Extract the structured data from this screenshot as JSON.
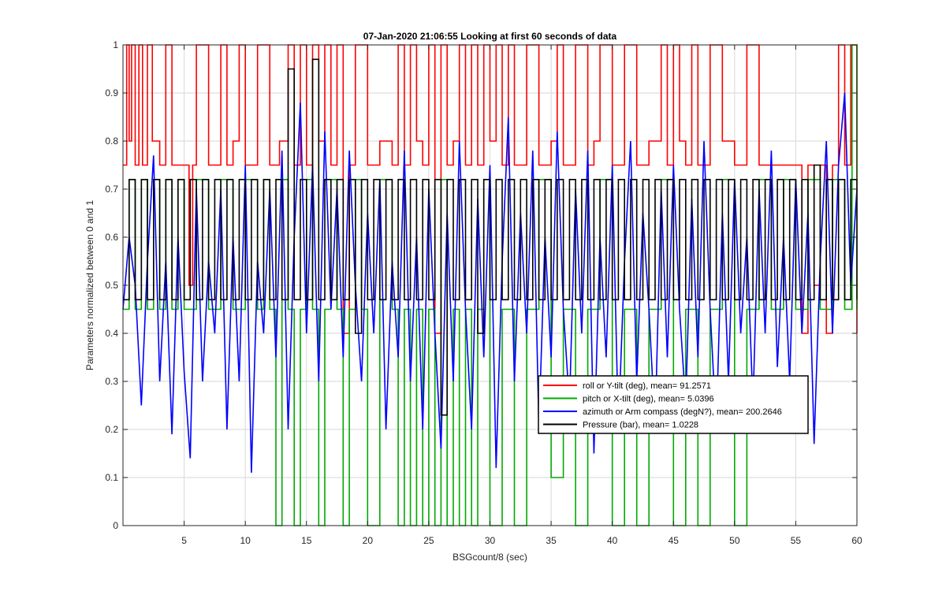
{
  "chart_data": {
    "type": "line",
    "title": "07-Jan-2020 21:06:55 Looking at first 60 seconds of data",
    "xlabel": "BSGcount/8 (sec)",
    "ylabel": "Parameters normalized between 0 and 1",
    "xlim": [
      0,
      60
    ],
    "ylim": [
      0,
      1
    ],
    "xticks": [
      5,
      10,
      15,
      20,
      25,
      30,
      35,
      40,
      45,
      50,
      55,
      60
    ],
    "yticks": [
      0,
      0.1,
      0.2,
      0.3,
      0.4,
      0.5,
      0.6,
      0.7,
      0.8,
      0.9,
      1
    ],
    "grid": true,
    "legend_position": "lower-right",
    "series": [
      {
        "name": "roll or Y-tilt (deg), mean= 91.2571",
        "color": "#ff0000",
        "kind": "step",
        "levels": [
          0.4,
          0.5,
          0.75,
          0.8,
          1.0
        ],
        "base_level": 0.75,
        "x": [
          0,
          0.3,
          0.5,
          0.7,
          1.0,
          1.3,
          1.6,
          2.0,
          2.4,
          3.0,
          3.5,
          4.0,
          5.0,
          5.4,
          5.7,
          6.0,
          7.0,
          8.0,
          8.5,
          9.0,
          9.5,
          10.0,
          11.0,
          12.0,
          12.8,
          13.5,
          14.0,
          14.5,
          15.0,
          15.5,
          16.0,
          16.5,
          17.0,
          17.5,
          18.0,
          18.5,
          19.0,
          20.0,
          21.0,
          22.0,
          22.5,
          23.0,
          23.5,
          24.0,
          24.5,
          25.0,
          25.5,
          26.0,
          26.5,
          27.0,
          27.5,
          28.0,
          28.5,
          29.0,
          29.5,
          30.0,
          30.5,
          31.0,
          31.5,
          32.0,
          33.0,
          34.0,
          35.0,
          35.5,
          36.0,
          37.0,
          38.0,
          38.5,
          39.0,
          40.0,
          41.0,
          42.0,
          43.0,
          44.0,
          44.5,
          45.0,
          45.5,
          46.0,
          46.5,
          47.0,
          48.0,
          49.0,
          50.0,
          51.0,
          52.0,
          53.0,
          54.0,
          55.0,
          55.5,
          56.0,
          56.5,
          57.0,
          57.5,
          58.0,
          58.5,
          59.0,
          59.5,
          60.0
        ],
        "y": [
          0.75,
          1.0,
          0.8,
          1.0,
          0.75,
          1.0,
          0.75,
          1.0,
          0.8,
          0.75,
          1.0,
          0.75,
          0.75,
          0.5,
          0.75,
          1.0,
          0.75,
          1.0,
          0.75,
          0.8,
          1.0,
          0.75,
          1.0,
          0.75,
          0.8,
          1.0,
          0.75,
          1.0,
          0.75,
          1.0,
          0.8,
          1.0,
          0.75,
          1.0,
          0.4,
          0.75,
          1.0,
          0.75,
          0.8,
          0.75,
          1.0,
          0.75,
          1.0,
          0.8,
          0.75,
          1.0,
          0.4,
          1.0,
          0.75,
          0.8,
          1.0,
          0.75,
          1.0,
          0.75,
          1.0,
          0.8,
          1.0,
          0.75,
          1.0,
          0.75,
          1.0,
          0.75,
          0.8,
          1.0,
          0.75,
          1.0,
          0.75,
          0.8,
          1.0,
          0.75,
          1.0,
          0.75,
          0.8,
          1.0,
          0.75,
          1.0,
          0.8,
          0.75,
          1.0,
          0.75,
          1.0,
          0.8,
          0.75,
          1.0,
          0.75,
          0.75,
          0.75,
          0.75,
          0.4,
          0.75,
          0.5,
          0.75,
          0.4,
          0.75,
          1.0,
          0.75,
          1.0,
          0.4
        ]
      },
      {
        "name": "pitch or X-tilt (deg), mean= 5.0396",
        "color": "#00aa00",
        "kind": "step",
        "levels": [
          0.0,
          0.1,
          0.45,
          0.72
        ],
        "x": [
          0,
          0.5,
          1.0,
          1.5,
          2.0,
          2.5,
          3.0,
          3.5,
          4.0,
          4.5,
          5.0,
          6.0,
          7.0,
          8.0,
          9.0,
          10.0,
          11.0,
          11.5,
          12.0,
          12.5,
          13.0,
          13.5,
          14.0,
          14.5,
          15.0,
          15.5,
          16.0,
          16.5,
          17.0,
          17.5,
          18.0,
          18.5,
          19.0,
          19.5,
          20.0,
          21.0,
          22.0,
          22.5,
          23.0,
          23.5,
          24.0,
          24.5,
          25.0,
          25.5,
          26.0,
          26.5,
          27.0,
          27.5,
          28.0,
          28.5,
          29.0,
          29.5,
          30.0,
          31.0,
          32.0,
          33.0,
          34.0,
          35.0,
          36.0,
          37.0,
          38.0,
          39.0,
          40.0,
          41.0,
          42.0,
          43.0,
          44.0,
          45.0,
          46.0,
          47.0,
          48.0,
          49.0,
          50.0,
          51.0,
          52.0,
          53.0,
          54.0,
          55.0,
          56.0,
          57.0,
          58.0,
          59.0,
          59.6,
          60.0
        ],
        "y": [
          0.45,
          0.72,
          0.45,
          0.72,
          0.45,
          0.72,
          0.45,
          0.72,
          0.45,
          0.72,
          0.45,
          0.72,
          0.45,
          0.72,
          0.45,
          0.72,
          0.45,
          0.72,
          0.45,
          0.0,
          0.72,
          0.45,
          0.0,
          0.45,
          0.72,
          0.45,
          0.0,
          0.45,
          0.72,
          0.45,
          0.0,
          0.45,
          0.72,
          0.45,
          0.0,
          0.72,
          0.45,
          0.0,
          0.45,
          0.0,
          0.45,
          0.0,
          0.45,
          0.0,
          0.72,
          0.0,
          0.45,
          0.0,
          0.45,
          0.0,
          0.45,
          0.72,
          0.0,
          0.45,
          0.0,
          0.45,
          0.72,
          0.1,
          0.45,
          0.0,
          0.45,
          0.72,
          0.0,
          0.45,
          0.0,
          0.45,
          0.72,
          0.0,
          0.45,
          0.0,
          0.45,
          0.72,
          0.0,
          0.45,
          0.72,
          0.45,
          0.72,
          0.45,
          0.72,
          0.45,
          0.72,
          0.45,
          1.0,
          0.45
        ]
      },
      {
        "name": "azimuth or Arm compass (degN?), mean= 200.2646",
        "color": "#0000ff",
        "kind": "line",
        "x": [
          0,
          0.5,
          1.0,
          1.5,
          2.0,
          2.5,
          3.0,
          3.5,
          4.0,
          4.5,
          5.0,
          5.5,
          6.0,
          6.5,
          7.0,
          7.5,
          8.0,
          8.5,
          9.0,
          9.5,
          10.0,
          10.5,
          11.0,
          11.5,
          12.0,
          12.5,
          13.0,
          13.5,
          14.0,
          14.5,
          15.0,
          15.5,
          16.0,
          16.5,
          17.0,
          17.5,
          18.0,
          18.5,
          19.0,
          19.5,
          20.0,
          20.5,
          21.0,
          21.5,
          22.0,
          22.5,
          23.0,
          23.5,
          24.0,
          24.5,
          25.0,
          25.5,
          26.0,
          26.5,
          27.0,
          27.5,
          28.0,
          28.5,
          29.0,
          29.5,
          30.0,
          30.5,
          31.0,
          31.5,
          32.0,
          32.5,
          33.0,
          33.5,
          34.0,
          34.5,
          35.0,
          35.5,
          36.0,
          36.5,
          37.0,
          37.5,
          38.0,
          38.5,
          39.0,
          39.5,
          40.0,
          40.5,
          41.0,
          41.5,
          42.0,
          42.5,
          43.0,
          43.5,
          44.0,
          44.5,
          45.0,
          45.5,
          46.0,
          46.5,
          47.0,
          47.5,
          48.0,
          48.5,
          49.0,
          49.5,
          50.0,
          50.5,
          51.0,
          51.5,
          52.0,
          52.5,
          53.0,
          53.5,
          54.0,
          54.5,
          55.0,
          55.5,
          56.0,
          56.5,
          57.0,
          57.5,
          58.0,
          58.5,
          59.0,
          59.5,
          60.0
        ],
        "y": [
          0.45,
          0.6,
          0.5,
          0.25,
          0.55,
          0.77,
          0.3,
          0.55,
          0.19,
          0.6,
          0.32,
          0.14,
          0.7,
          0.3,
          0.55,
          0.4,
          0.7,
          0.2,
          0.6,
          0.3,
          0.75,
          0.11,
          0.55,
          0.4,
          0.7,
          0.35,
          0.78,
          0.2,
          0.6,
          0.88,
          0.4,
          0.75,
          0.3,
          0.82,
          0.45,
          0.7,
          0.35,
          0.78,
          0.5,
          0.3,
          0.65,
          0.4,
          0.72,
          0.2,
          0.55,
          0.35,
          0.78,
          0.3,
          0.6,
          0.2,
          0.7,
          0.4,
          0.16,
          0.65,
          0.3,
          0.8,
          0.45,
          0.2,
          0.68,
          0.35,
          0.75,
          0.12,
          0.55,
          0.85,
          0.3,
          0.65,
          0.4,
          0.78,
          0.2,
          0.6,
          0.35,
          0.82,
          0.45,
          0.25,
          0.7,
          0.4,
          0.78,
          0.15,
          0.6,
          0.35,
          0.75,
          0.2,
          0.55,
          0.8,
          0.3,
          0.65,
          0.45,
          0.2,
          0.7,
          0.35,
          0.75,
          0.45,
          0.25,
          0.68,
          0.35,
          0.8,
          0.45,
          0.2,
          0.65,
          0.3,
          0.72,
          0.4,
          0.6,
          0.25,
          0.7,
          0.4,
          0.78,
          0.33,
          0.6,
          0.3,
          0.72,
          0.4,
          0.65,
          0.17,
          0.55,
          0.8,
          0.4,
          0.75,
          0.9,
          0.5,
          0.7
        ]
      },
      {
        "name": "Pressure (bar), mean= 1.0228",
        "color": "#000000",
        "kind": "step",
        "levels": [
          0.47,
          0.72
        ],
        "x": [
          0,
          0.5,
          1.0,
          1.5,
          2.0,
          2.5,
          3.0,
          3.5,
          4.0,
          4.5,
          5.0,
          5.5,
          6.0,
          6.5,
          7.0,
          7.5,
          8.0,
          8.5,
          9.0,
          9.5,
          10.0,
          10.5,
          11.0,
          11.5,
          12.0,
          12.5,
          13.0,
          13.5,
          14.0,
          14.5,
          15.0,
          15.5,
          16.0,
          16.5,
          17.0,
          17.5,
          18.0,
          18.5,
          19.0,
          19.5,
          20.0,
          20.5,
          21.0,
          21.5,
          22.0,
          22.5,
          23.0,
          23.5,
          24.0,
          24.5,
          25.0,
          25.5,
          26.0,
          26.5,
          27.0,
          27.5,
          28.0,
          28.5,
          29.0,
          29.5,
          30.0,
          30.5,
          31.0,
          31.5,
          32.0,
          32.5,
          33.0,
          33.5,
          34.0,
          34.5,
          35.0,
          35.5,
          36.0,
          36.5,
          37.0,
          37.5,
          38.0,
          38.5,
          39.0,
          39.5,
          40.0,
          40.5,
          41.0,
          41.5,
          42.0,
          42.5,
          43.0,
          43.5,
          44.0,
          44.5,
          45.0,
          45.5,
          46.0,
          46.5,
          47.0,
          47.5,
          48.0,
          48.5,
          49.0,
          49.5,
          50.0,
          50.5,
          51.0,
          51.5,
          52.0,
          52.5,
          53.0,
          53.5,
          54.0,
          54.5,
          55.0,
          55.5,
          56.0,
          56.5,
          57.0,
          57.5,
          58.0,
          58.5,
          59.0,
          59.5,
          60.0
        ],
        "y": [
          0.47,
          0.72,
          0.47,
          0.72,
          0.47,
          0.72,
          0.47,
          0.72,
          0.47,
          0.72,
          0.47,
          0.72,
          0.47,
          0.72,
          0.47,
          0.72,
          0.47,
          0.72,
          0.47,
          0.72,
          0.47,
          0.72,
          0.47,
          0.72,
          0.47,
          0.72,
          0.47,
          0.95,
          0.47,
          0.72,
          0.47,
          0.97,
          0.47,
          0.72,
          0.47,
          0.72,
          0.47,
          0.72,
          0.4,
          0.72,
          0.47,
          0.72,
          0.47,
          0.72,
          0.47,
          0.72,
          0.47,
          0.72,
          0.47,
          0.72,
          0.47,
          0.72,
          0.23,
          0.72,
          0.47,
          0.72,
          0.47,
          0.72,
          0.4,
          0.72,
          0.47,
          0.72,
          0.47,
          0.72,
          0.47,
          0.72,
          0.47,
          0.72,
          0.47,
          0.72,
          0.47,
          0.72,
          0.47,
          0.72,
          0.47,
          0.72,
          0.47,
          0.72,
          0.47,
          0.72,
          0.47,
          0.72,
          0.47,
          0.72,
          0.47,
          0.72,
          0.47,
          0.72,
          0.47,
          0.72,
          0.47,
          0.72,
          0.47,
          0.72,
          0.47,
          0.72,
          0.47,
          0.72,
          0.47,
          0.72,
          0.47,
          0.72,
          0.47,
          0.72,
          0.47,
          0.72,
          0.47,
          0.72,
          0.47,
          0.72,
          0.47,
          0.72,
          0.47,
          0.75,
          0.47,
          0.72,
          0.47,
          0.72,
          0.47,
          0.72,
          0.47
        ]
      }
    ]
  }
}
